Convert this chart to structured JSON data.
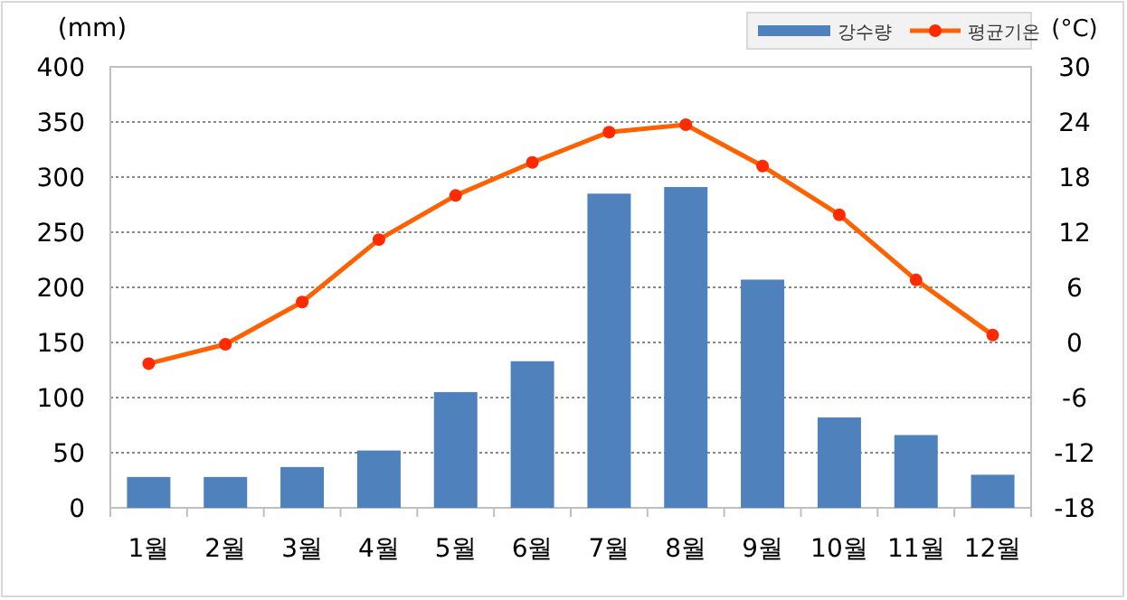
{
  "chart_data": {
    "type": "bar",
    "categories": [
      "1월",
      "2월",
      "3월",
      "4월",
      "5월",
      "6월",
      "7월",
      "8월",
      "9월",
      "10월",
      "11월",
      "12월"
    ],
    "series": [
      {
        "name": "강수량",
        "color": "#4f81bd",
        "values": [
          28,
          28,
          37,
          52,
          105,
          133,
          285,
          291,
          207,
          82,
          66,
          30
        ]
      },
      {
        "name": "평균기온",
        "type": "line",
        "axis": "y2",
        "color": "#ff6000",
        "marker": "circle",
        "values": [
          -2.3,
          -0.2,
          4.4,
          11.2,
          16.0,
          19.6,
          22.9,
          23.7,
          19.2,
          13.9,
          6.8,
          0.8
        ]
      }
    ],
    "ylabel": "(mm)",
    "y2label": "(°C)",
    "ylim": [
      0,
      400
    ],
    "yticks": [
      0,
      50,
      100,
      150,
      200,
      250,
      300,
      350,
      400
    ],
    "y2lim": [
      -18,
      30
    ],
    "y2ticks": [
      -18,
      -12,
      -6,
      0,
      6,
      12,
      18,
      24,
      30
    ],
    "grid": "y",
    "legend": "top right"
  }
}
